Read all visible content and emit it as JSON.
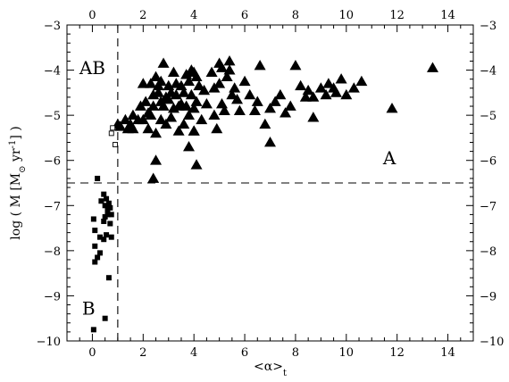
{
  "chart_data": {
    "type": "scatter",
    "title": "",
    "xlabel": "<α>t",
    "xlabel_parts": {
      "main": "<α>",
      "sub": "t"
    },
    "ylabel": "log ( Ṁ [M⊙ yr-1] )",
    "ylabel_parts": {
      "lead": "log ( ",
      "mdot": "M",
      "mid": " [M",
      "sun": "⊙",
      "yr": " yr",
      "sup": "-1",
      "tail": "] )"
    },
    "xlim": [
      -1,
      15
    ],
    "ylim": [
      -10,
      -3
    ],
    "xticks": [
      0,
      2,
      4,
      6,
      8,
      10,
      12,
      14
    ],
    "yticks": [
      -10,
      -9,
      -8,
      -7,
      -6,
      -5,
      -4,
      -3
    ],
    "grid": false,
    "mirrored_axes": true,
    "reference_lines": [
      {
        "orientation": "vertical",
        "x": 1.0,
        "style": "dashed"
      },
      {
        "orientation": "horizontal",
        "y": -6.5,
        "style": "dashed"
      }
    ],
    "region_labels": [
      {
        "text": "AB",
        "x": 0.0,
        "y": -3.95
      },
      {
        "text": "A",
        "x": 11.7,
        "y": -5.95
      },
      {
        "text": "B",
        "x": -0.15,
        "y": -9.28
      }
    ],
    "series": [
      {
        "marker": "filled-triangle",
        "points": [
          [
            1.0,
            -5.2
          ],
          [
            1.1,
            -5.25
          ],
          [
            1.3,
            -5.1
          ],
          [
            1.4,
            -5.3
          ],
          [
            1.5,
            -5.2
          ],
          [
            1.6,
            -5.0
          ],
          [
            1.6,
            -5.3
          ],
          [
            1.8,
            -5.1
          ],
          [
            1.9,
            -4.8
          ],
          [
            2.0,
            -4.3
          ],
          [
            2.0,
            -5.1
          ],
          [
            2.1,
            -4.7
          ],
          [
            2.2,
            -4.95
          ],
          [
            2.2,
            -5.3
          ],
          [
            2.3,
            -5.0
          ],
          [
            2.3,
            -4.3
          ],
          [
            2.4,
            -4.8
          ],
          [
            2.4,
            -4.55
          ],
          [
            2.5,
            -4.15
          ],
          [
            2.5,
            -5.4
          ],
          [
            2.6,
            -4.5
          ],
          [
            2.6,
            -4.35
          ],
          [
            2.7,
            -4.25
          ],
          [
            2.7,
            -4.7
          ],
          [
            2.7,
            -5.1
          ],
          [
            2.8,
            -4.8
          ],
          [
            2.8,
            -3.85
          ],
          [
            2.9,
            -4.6
          ],
          [
            2.9,
            -5.2
          ],
          [
            3.0,
            -4.35
          ],
          [
            3.0,
            -4.65
          ],
          [
            3.1,
            -4.5
          ],
          [
            3.1,
            -5.05
          ],
          [
            3.2,
            -4.05
          ],
          [
            3.2,
            -4.85
          ],
          [
            3.3,
            -4.3
          ],
          [
            3.3,
            -4.55
          ],
          [
            3.4,
            -4.8
          ],
          [
            3.4,
            -5.35
          ],
          [
            3.5,
            -4.35
          ],
          [
            3.5,
            -4.75
          ],
          [
            3.6,
            -4.5
          ],
          [
            3.6,
            -5.2
          ],
          [
            3.7,
            -4.8
          ],
          [
            3.7,
            -4.1
          ],
          [
            3.8,
            -4.25
          ],
          [
            3.8,
            -5.0
          ],
          [
            3.8,
            -5.7
          ],
          [
            3.9,
            -4.0
          ],
          [
            3.9,
            -4.55
          ],
          [
            4.0,
            -4.05
          ],
          [
            4.0,
            -4.85
          ],
          [
            4.0,
            -5.35
          ],
          [
            4.1,
            -4.15
          ],
          [
            4.1,
            -4.7
          ],
          [
            4.2,
            -4.35
          ],
          [
            4.3,
            -5.1
          ],
          [
            4.4,
            -4.45
          ],
          [
            4.5,
            -4.75
          ],
          [
            4.7,
            -4.05
          ],
          [
            4.8,
            -4.4
          ],
          [
            4.8,
            -5.0
          ],
          [
            4.9,
            -5.3
          ],
          [
            5.0,
            -3.85
          ],
          [
            5.0,
            -4.3
          ],
          [
            5.1,
            -4.75
          ],
          [
            5.1,
            -3.95
          ],
          [
            5.2,
            -4.9
          ],
          [
            5.3,
            -4.15
          ],
          [
            5.4,
            -3.8
          ],
          [
            5.4,
            -4.0
          ],
          [
            5.5,
            -4.55
          ],
          [
            5.6,
            -4.4
          ],
          [
            5.7,
            -4.65
          ],
          [
            5.8,
            -4.9
          ],
          [
            6.0,
            -4.25
          ],
          [
            6.2,
            -4.55
          ],
          [
            6.4,
            -4.9
          ],
          [
            6.5,
            -4.7
          ],
          [
            6.6,
            -3.9
          ],
          [
            6.8,
            -5.2
          ],
          [
            7.0,
            -4.85
          ],
          [
            7.0,
            -5.6
          ],
          [
            7.2,
            -4.7
          ],
          [
            7.4,
            -4.55
          ],
          [
            7.6,
            -4.95
          ],
          [
            7.8,
            -4.8
          ],
          [
            8.0,
            -3.9
          ],
          [
            8.2,
            -4.35
          ],
          [
            8.4,
            -4.6
          ],
          [
            8.5,
            -4.45
          ],
          [
            8.7,
            -4.6
          ],
          [
            8.7,
            -5.05
          ],
          [
            9.0,
            -4.4
          ],
          [
            9.2,
            -4.55
          ],
          [
            9.3,
            -4.3
          ],
          [
            9.5,
            -4.4
          ],
          [
            9.6,
            -4.5
          ],
          [
            9.8,
            -4.2
          ],
          [
            10.0,
            -4.55
          ],
          [
            10.3,
            -4.4
          ],
          [
            10.6,
            -4.25
          ],
          [
            11.8,
            -4.85
          ],
          [
            13.4,
            -3.95
          ],
          [
            2.5,
            -6.0
          ],
          [
            4.1,
            -6.1
          ],
          [
            2.4,
            -6.4
          ],
          [
            4.0,
            -5.35
          ]
        ]
      },
      {
        "marker": "open-square",
        "points": [
          [
            0.75,
            -5.4
          ],
          [
            0.8,
            -5.28
          ],
          [
            0.9,
            -5.65
          ]
        ]
      },
      {
        "marker": "filled-square",
        "points": [
          [
            0.2,
            -6.4
          ],
          [
            0.35,
            -6.9
          ],
          [
            0.45,
            -6.75
          ],
          [
            0.5,
            -7.0
          ],
          [
            0.55,
            -6.85
          ],
          [
            0.6,
            -7.1
          ],
          [
            0.65,
            -6.95
          ],
          [
            0.7,
            -7.05
          ],
          [
            0.5,
            -7.25
          ],
          [
            0.6,
            -7.2
          ],
          [
            0.45,
            -7.35
          ],
          [
            0.7,
            -7.4
          ],
          [
            0.75,
            -7.2
          ],
          [
            0.05,
            -7.3
          ],
          [
            0.1,
            -7.55
          ],
          [
            0.3,
            -7.7
          ],
          [
            0.55,
            -7.65
          ],
          [
            0.75,
            -7.7
          ],
          [
            0.45,
            -7.75
          ],
          [
            0.1,
            -7.9
          ],
          [
            0.3,
            -8.05
          ],
          [
            0.2,
            -8.15
          ],
          [
            0.1,
            -8.25
          ],
          [
            0.65,
            -8.6
          ],
          [
            0.5,
            -9.5
          ],
          [
            0.05,
            -9.75
          ]
        ]
      }
    ]
  }
}
